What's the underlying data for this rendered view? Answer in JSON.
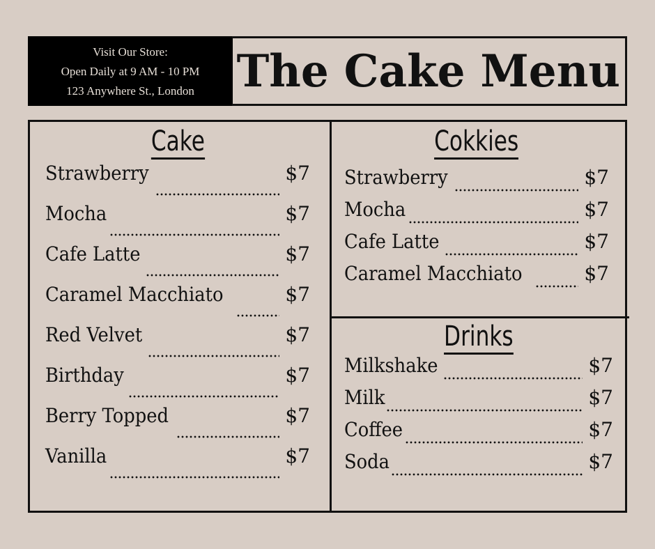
{
  "store": {
    "line1": "Visit Our Store:",
    "line2": "Open Daily at 9 AM - 10 PM",
    "line3": "123 Anywhere St., London"
  },
  "title": "The Cake Menu",
  "sections": [
    {
      "heading": "Cake",
      "items": [
        {
          "name": "Strawberry",
          "price": "$7"
        },
        {
          "name": "Mocha",
          "price": "$7"
        },
        {
          "name": "Cafe Latte",
          "price": "$7"
        },
        {
          "name": "Caramel Macchiato",
          "price": "$7"
        },
        {
          "name": "Red Velvet",
          "price": "$7"
        },
        {
          "name": "Birthday",
          "price": "$7"
        },
        {
          "name": "Berry Topped",
          "price": "$7"
        },
        {
          "name": "Vanilla",
          "price": "$7"
        }
      ]
    },
    {
      "heading": "Cokkies",
      "items": [
        {
          "name": "Strawberry",
          "price": "$7"
        },
        {
          "name": "Mocha",
          "price": "$7"
        },
        {
          "name": "Cafe Latte",
          "price": "$7"
        },
        {
          "name": "Caramel Macchiato",
          "price": "$7"
        }
      ]
    },
    {
      "heading": "Drinks",
      "items": [
        {
          "name": "Milkshake",
          "price": "$7"
        },
        {
          "name": "Milk",
          "price": "$7"
        },
        {
          "name": "Coffee",
          "price": "$7"
        },
        {
          "name": "Soda",
          "price": "$7"
        }
      ]
    }
  ],
  "colors": {
    "background": "#d8cdc5",
    "ink": "#111111",
    "info_bg": "#000000"
  }
}
